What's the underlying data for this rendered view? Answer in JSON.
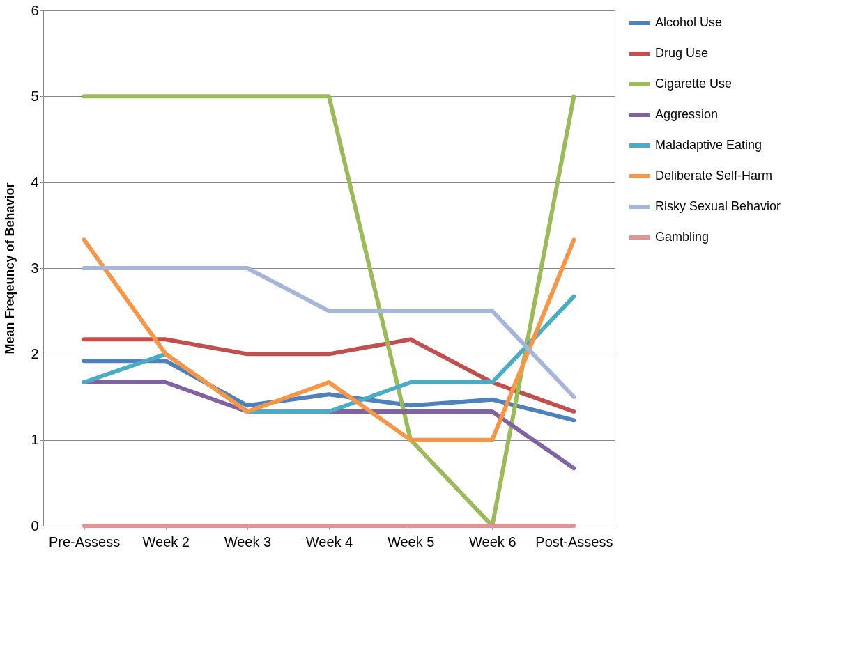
{
  "chart_data": {
    "type": "line",
    "ylabel": "Mean Freqeuncy of Behavior",
    "categories": [
      "Pre-Assess",
      "Week 2",
      "Week 3",
      "Week 4",
      "Week 5",
      "Week 6",
      "Post-Assess"
    ],
    "ylim": [
      0,
      6
    ],
    "yticks": [
      0,
      1,
      2,
      3,
      4,
      5,
      6
    ],
    "grid": "y",
    "legend": "top right",
    "marker": "none",
    "line_style": "solid",
    "series": [
      {
        "name": "Alcohol Use",
        "color": "#4f81bd",
        "values": [
          1.92,
          1.92,
          1.4,
          1.53,
          1.4,
          1.47,
          1.23
        ]
      },
      {
        "name": "Drug Use",
        "color": "#c0504d",
        "values": [
          2.17,
          2.17,
          2.0,
          2.0,
          2.17,
          1.67,
          1.33
        ]
      },
      {
        "name": "Cigarette Use",
        "color": "#9bbb59",
        "values": [
          5,
          5,
          5,
          5,
          1,
          0,
          5
        ]
      },
      {
        "name": "Aggression",
        "color": "#8064a2",
        "values": [
          1.67,
          1.67,
          1.33,
          1.33,
          1.33,
          1.33,
          0.67
        ]
      },
      {
        "name": "Maladaptive Eating",
        "color": "#4bacc6",
        "values": [
          1.67,
          2.0,
          1.33,
          1.33,
          1.67,
          1.67,
          2.67
        ]
      },
      {
        "name": "Deliberate Self-Harm",
        "color": "#f79646",
        "values": [
          3.33,
          2.0,
          1.33,
          1.67,
          1.0,
          1.0,
          3.33
        ]
      },
      {
        "name": "Risky Sexual Behavior",
        "color": "#a5b6d9",
        "values": [
          3,
          3,
          3,
          2.5,
          2.5,
          2.5,
          1.5
        ]
      },
      {
        "name": "Gambling",
        "color": "#d99694",
        "values": [
          0,
          0,
          0,
          0,
          0,
          0,
          0
        ]
      }
    ]
  }
}
